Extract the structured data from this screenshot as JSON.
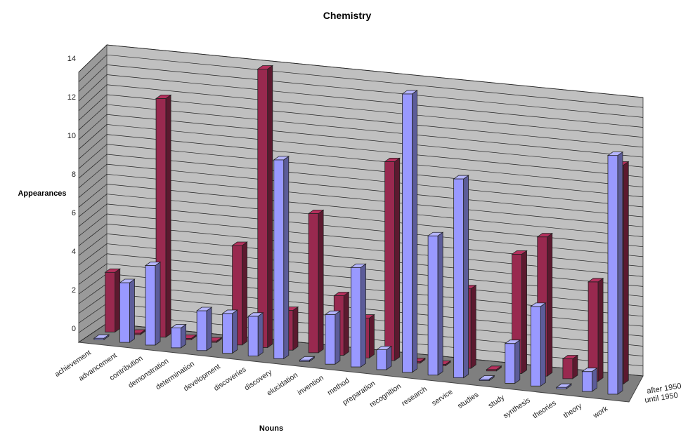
{
  "chart_data": {
    "type": "bar",
    "title": "Chemistry",
    "xlabel": "Nouns",
    "ylabel": "Appearances",
    "ylim": [
      0,
      14
    ],
    "yticks": [
      0,
      2,
      4,
      6,
      8,
      10,
      12,
      14
    ],
    "grid": true,
    "categories": [
      "achievement",
      "advancement",
      "contribution",
      "demonstration",
      "determination",
      "development",
      "discoveries",
      "discovery",
      "elucidation",
      "invention",
      "method",
      "preparation",
      "recognition",
      "research",
      "service",
      "studies",
      "study",
      "synthesis",
      "theories",
      "theory",
      "work"
    ],
    "series": [
      {
        "name": "after 1950",
        "color": "#99294f",
        "values": [
          3,
          0,
          12,
          0,
          0,
          5,
          14,
          2,
          7,
          3,
          2,
          10,
          0,
          0,
          4,
          0,
          6,
          7,
          1,
          5,
          11
        ]
      },
      {
        "name": "until 1950",
        "color": "#9999ff",
        "values": [
          0,
          3,
          4,
          1,
          2,
          2,
          2,
          10,
          0,
          2.5,
          5,
          1,
          14,
          7,
          10,
          0,
          2,
          4,
          0,
          1,
          12
        ]
      }
    ]
  }
}
